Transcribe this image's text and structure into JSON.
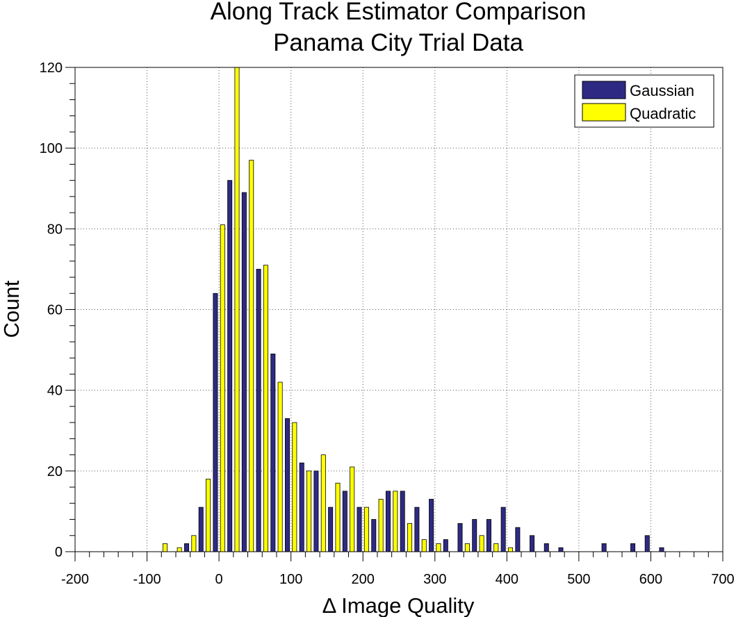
{
  "chart_data": {
    "type": "bar",
    "title": [
      "Along Track Estimator Comparison",
      "Panama City Trial Data"
    ],
    "xlabel": "Δ Image Quality",
    "ylabel": "Count",
    "xlim": [
      -200,
      700
    ],
    "ylim": [
      0,
      120
    ],
    "xticks": [
      -200,
      -100,
      0,
      100,
      200,
      300,
      400,
      500,
      600,
      700
    ],
    "yticks": [
      0,
      20,
      40,
      60,
      80,
      100,
      120
    ],
    "grid": true,
    "legend_position": "top-right",
    "bin_centers": [
      -80,
      -60,
      -40,
      -20,
      0,
      20,
      40,
      60,
      80,
      100,
      120,
      140,
      160,
      180,
      200,
      220,
      240,
      260,
      280,
      300,
      320,
      340,
      360,
      380,
      400,
      420,
      440,
      460,
      480,
      500,
      520,
      540,
      560,
      580,
      600,
      620
    ],
    "series": [
      {
        "name": "Gaussian",
        "color": "#2e2a84",
        "values": [
          0,
          0,
          2,
          11,
          64,
          92,
          89,
          70,
          49,
          33,
          22,
          20,
          11,
          15,
          11,
          8,
          15,
          15,
          11,
          13,
          3,
          7,
          8,
          8,
          11,
          6,
          4,
          2,
          1,
          0,
          0,
          2,
          0,
          2,
          4,
          1
        ]
      },
      {
        "name": "Quadratic",
        "color": "#ffff00",
        "values": [
          2,
          1,
          4,
          18,
          81,
          120,
          97,
          71,
          42,
          32,
          20,
          24,
          17,
          21,
          11,
          13,
          15,
          7,
          3,
          2,
          0,
          2,
          4,
          2,
          1,
          0,
          0,
          0,
          0,
          0,
          0,
          0,
          0,
          0,
          0,
          0
        ]
      }
    ]
  }
}
